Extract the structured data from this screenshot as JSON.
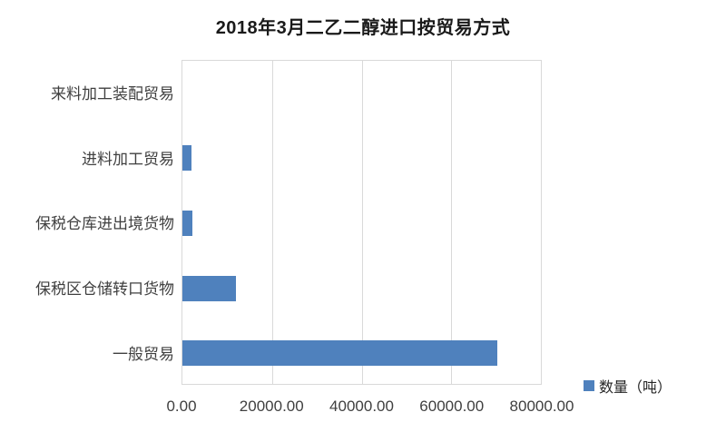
{
  "chart_data": {
    "type": "bar",
    "orientation": "horizontal",
    "title": "2018年3月二乙二醇进口按贸易方式",
    "categories": [
      "来料加工装配贸易",
      "进料加工贸易",
      "保税仓库进出境货物",
      "保税区仓储转口货物",
      "一般贸易"
    ],
    "series": [
      {
        "name": "数量（吨）",
        "values": [
          0,
          2000,
          2200,
          11800,
          70000
        ]
      }
    ],
    "xlim": [
      0,
      80000
    ],
    "x_ticks": [
      {
        "value": 0,
        "label": "0.00"
      },
      {
        "value": 20000,
        "label": "20000.00"
      },
      {
        "value": 40000,
        "label": "40000.00"
      },
      {
        "value": 60000,
        "label": "60000.00"
      },
      {
        "value": 80000,
        "label": "80000.00"
      }
    ],
    "grid": true,
    "legend_position": "bottom-right"
  },
  "legend": {
    "label": "数量（吨）"
  },
  "colors": {
    "bar": "#4F81BD",
    "grid": "#D9D9D9",
    "text": "#404040",
    "title": "#1A1A1A"
  }
}
